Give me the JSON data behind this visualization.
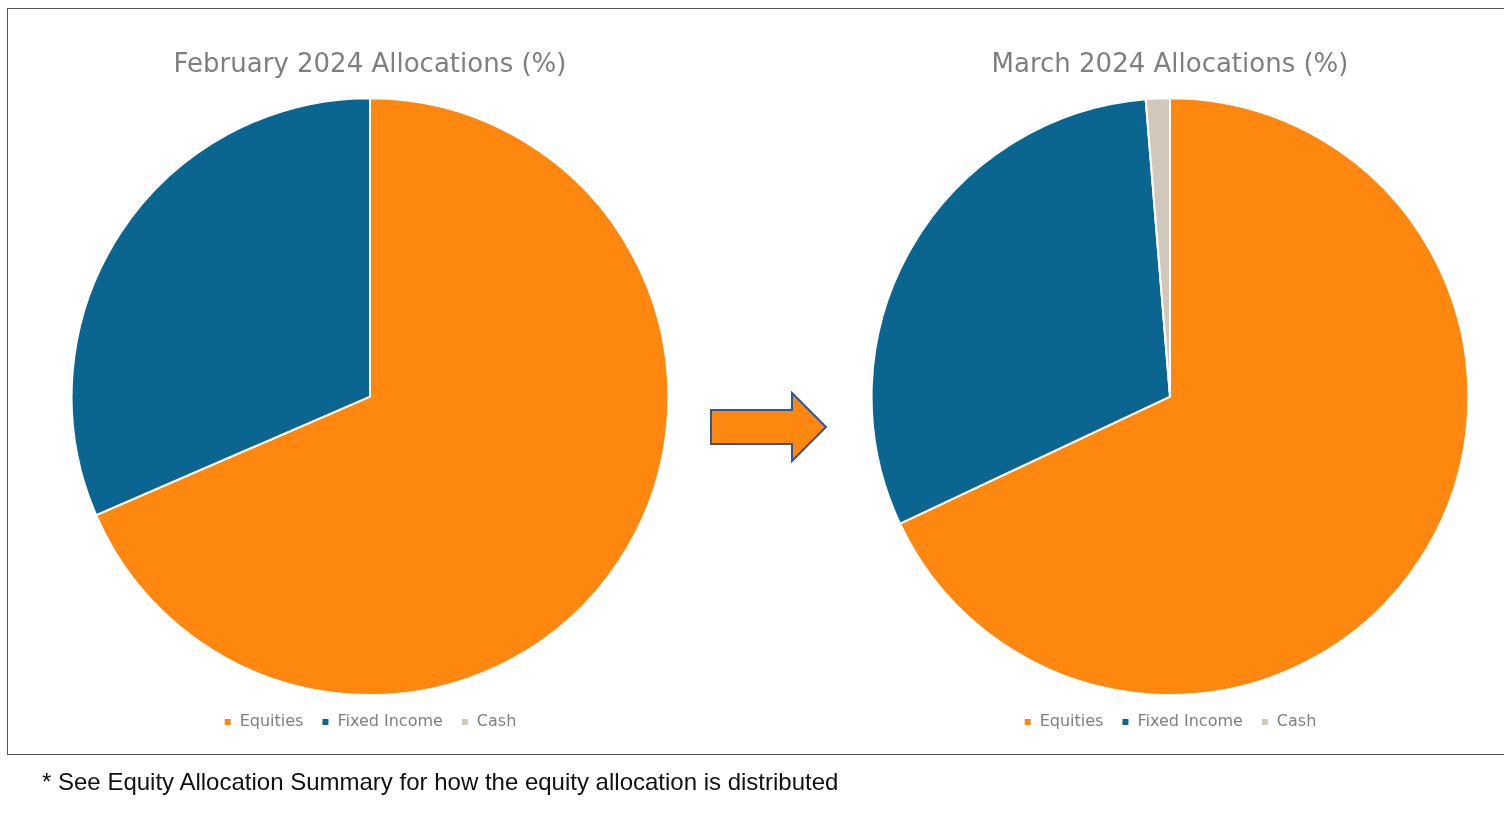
{
  "chart_data": [
    {
      "type": "pie",
      "title": "February 2024 Allocations (%)",
      "categories": [
        "Equities",
        "Fixed Income",
        "Cash"
      ],
      "values": [
        68.5,
        31.5,
        0
      ],
      "colors": [
        "#fd870f",
        "#0a6690",
        "#d1c8bb"
      ],
      "legend": "bottom"
    },
    {
      "type": "pie",
      "title": "March 2024 Allocations (%)",
      "categories": [
        "Equities",
        "Fixed Income",
        "Cash"
      ],
      "values": [
        68,
        30.7,
        1.3
      ],
      "colors": [
        "#fd870f",
        "#0a6690",
        "#d1c8bb"
      ],
      "legend": "bottom",
      "annotations": [
        "* See Equity Allocation Summary for how the equity allocation is distributed"
      ]
    }
  ]
}
